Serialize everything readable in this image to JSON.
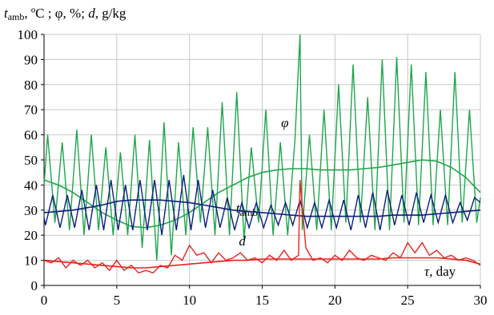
{
  "chart_data": {
    "type": "line",
    "ylabel": {
      "parts": [
        "t",
        "amb",
        ", ºC ; φ, %; ",
        "d",
        ", g/kg"
      ]
    },
    "xlabel": {
      "parts": [
        "τ",
        ", day"
      ]
    },
    "xlim": [
      0,
      30
    ],
    "xticks": [
      0,
      5,
      10,
      15,
      20,
      25,
      30
    ],
    "ylim": [
      0,
      100
    ],
    "yticks": [
      0,
      10,
      20,
      30,
      40,
      50,
      60,
      70,
      80,
      90,
      100
    ],
    "grid": true,
    "series": [
      {
        "name": "φ",
        "color": "#1fa64b",
        "x": [
          0,
          0.25,
          0.75,
          1.25,
          1.75,
          2.25,
          2.75,
          3.25,
          3.75,
          4.25,
          4.75,
          5.25,
          5.75,
          6.25,
          6.75,
          7.25,
          7.75,
          8.25,
          8.75,
          9.25,
          9.75,
          10.25,
          10.75,
          11.25,
          11.75,
          12.25,
          12.75,
          13.25,
          13.75,
          14.25,
          14.75,
          15.25,
          15.75,
          16.25,
          16.75,
          17.25,
          17.6,
          17.75,
          18.25,
          18.75,
          19.25,
          19.75,
          20.25,
          20.75,
          21.25,
          21.75,
          22.25,
          22.75,
          23.25,
          23.75,
          24.25,
          24.75,
          25.25,
          25.75,
          26.25,
          26.75,
          27.25,
          27.75,
          28.25,
          28.75,
          29.25,
          29.75,
          30
        ],
        "values": [
          40,
          60,
          25,
          57,
          22,
          62,
          20,
          60,
          22,
          55,
          20,
          53,
          20,
          60,
          15,
          58,
          10,
          65,
          12,
          57,
          20,
          63,
          25,
          63,
          20,
          73,
          20,
          77,
          18,
          55,
          25,
          70,
          20,
          57,
          20,
          58,
          100,
          22,
          60,
          22,
          70,
          22,
          80,
          25,
          88,
          25,
          75,
          22,
          90,
          22,
          91,
          25,
          88,
          24,
          85,
          24,
          70,
          24,
          85,
          25,
          70,
          25,
          35
        ]
      },
      {
        "color": "#1fa64b",
        "x": [
          0,
          1,
          2,
          3,
          4,
          5,
          6,
          7,
          8,
          9,
          10,
          11,
          12,
          13,
          14,
          15,
          16,
          17,
          18,
          19,
          20,
          21,
          22,
          23,
          24,
          25,
          26,
          27,
          28,
          29,
          30
        ],
        "values": [
          42,
          40,
          37,
          33,
          29,
          26,
          23.5,
          23,
          24,
          26,
          29,
          33,
          37,
          40,
          43,
          45,
          46,
          46.5,
          46.5,
          46,
          46,
          46,
          46.5,
          47,
          48,
          49,
          50,
          49.5,
          47,
          43,
          37
        ]
      },
      {
        "name": "t",
        "subscript": "amb",
        "color": "#0c1f7c",
        "x": [
          0,
          0.1,
          0.6,
          1.1,
          1.6,
          2.1,
          2.6,
          3.1,
          3.6,
          4.1,
          4.6,
          5.1,
          5.6,
          6.1,
          6.6,
          7.1,
          7.6,
          8.1,
          8.6,
          9.1,
          9.6,
          10.1,
          10.6,
          11.1,
          11.6,
          12.1,
          12.6,
          13.1,
          13.6,
          14.1,
          14.6,
          15.1,
          15.6,
          16.1,
          16.6,
          17.1,
          17.6,
          18.1,
          18.6,
          19.1,
          19.6,
          20.1,
          20.6,
          21.1,
          21.6,
          22.1,
          22.6,
          23.1,
          23.6,
          24.1,
          24.6,
          25.1,
          25.6,
          26.1,
          26.6,
          27.1,
          27.6,
          28.1,
          28.6,
          29.1,
          29.6,
          30
        ],
        "values": [
          27,
          24,
          36,
          23,
          36,
          23,
          38,
          22,
          40,
          22,
          42,
          22,
          40,
          22,
          42,
          22,
          42,
          20,
          42,
          22,
          44,
          22,
          42,
          23,
          38,
          23,
          35,
          22,
          33,
          23,
          33,
          23,
          32,
          24,
          33,
          24,
          34,
          23,
          33,
          23,
          34,
          23,
          34,
          22,
          36,
          23,
          37,
          22,
          38,
          24,
          36,
          24,
          37,
          25,
          36,
          25,
          36,
          25,
          33,
          26,
          35,
          33
        ]
      },
      {
        "color": "#0c1f7c",
        "x": [
          0,
          1,
          2,
          3,
          4,
          5,
          6,
          7,
          8,
          9,
          10,
          11,
          12,
          13,
          14,
          15,
          16,
          17,
          18,
          19,
          20,
          21,
          22,
          23,
          24,
          25,
          26,
          27,
          28,
          29,
          30
        ],
        "values": [
          29,
          29.5,
          30,
          31,
          32,
          33.5,
          34,
          34,
          34,
          33.5,
          33,
          32,
          31,
          30,
          29.5,
          29,
          28.5,
          28,
          27.5,
          27.5,
          27.5,
          27.5,
          27.5,
          27.5,
          28,
          28,
          28,
          28.5,
          29,
          29.5,
          30
        ]
      },
      {
        "name": "d",
        "color": "#e8231b",
        "x": [
          0,
          0.5,
          1,
          1.5,
          2,
          2.5,
          3,
          3.5,
          4,
          4.5,
          5,
          5.5,
          6,
          6.5,
          7,
          7.5,
          8,
          8.5,
          9,
          9.5,
          10,
          10.5,
          11,
          11.5,
          12,
          12.5,
          13,
          13.5,
          14,
          14.5,
          15,
          15.5,
          16,
          16.5,
          17,
          17.5,
          17.6,
          18,
          18.5,
          19,
          19.5,
          20,
          20.5,
          21,
          21.5,
          22,
          22.5,
          23,
          23.5,
          24,
          24.5,
          25,
          25.5,
          26,
          26.5,
          27,
          27.5,
          28,
          28.5,
          29,
          29.5,
          30
        ],
        "values": [
          10,
          9,
          11,
          7,
          10,
          8,
          10,
          7,
          9,
          6,
          10,
          6,
          8,
          5,
          6,
          5,
          8,
          7,
          12,
          10,
          16,
          12,
          13,
          9,
          13,
          10,
          11,
          13,
          10,
          11,
          9,
          12,
          10,
          14,
          10,
          12,
          42,
          15,
          10,
          11,
          9,
          12,
          10,
          14,
          11,
          10,
          12,
          11,
          10,
          13,
          11,
          17,
          13,
          17,
          12,
          14,
          11,
          12,
          10,
          11,
          10,
          8
        ]
      },
      {
        "color": "#e8231b",
        "x": [
          0,
          1,
          2,
          3,
          4,
          5,
          6,
          7,
          8,
          9,
          10,
          11,
          12,
          13,
          14,
          15,
          16,
          17,
          18,
          19,
          20,
          21,
          22,
          23,
          24,
          25,
          26,
          27,
          28,
          29,
          30
        ],
        "values": [
          10,
          9.5,
          9,
          8.5,
          8,
          7.5,
          7,
          7,
          7.5,
          8,
          8.5,
          9,
          9.5,
          10,
          10,
          10.5,
          10.5,
          10.5,
          10.5,
          10.5,
          10.5,
          10.5,
          10.5,
          10.5,
          11,
          11,
          11,
          11,
          10.5,
          10,
          8.5
        ]
      }
    ]
  }
}
